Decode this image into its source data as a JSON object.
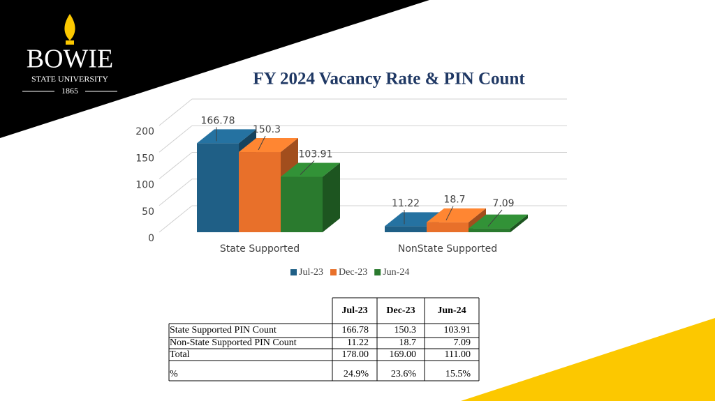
{
  "logo": {
    "name": "BOWIE",
    "subtitle": "STATE UNIVERSITY",
    "year": "1865"
  },
  "chart_data": {
    "type": "bar3d",
    "title": "FY 2024 Vacancy Rate & PIN Count",
    "categories": [
      "State Supported",
      "NonState Supported"
    ],
    "series": [
      {
        "name": "Jul-23",
        "color": "#1f5f86",
        "values": [
          166.78,
          11.22
        ]
      },
      {
        "name": "Dec-23",
        "color": "#e8702a",
        "values": [
          150.3,
          18.7
        ]
      },
      {
        "name": "Jun-24",
        "color": "#2a7a2e",
        "values": [
          103.91,
          7.09
        ]
      }
    ],
    "ylim": [
      0,
      200
    ],
    "yticks": [
      0,
      50,
      100,
      150,
      200
    ],
    "grid": true,
    "legend": "bottom"
  },
  "table": {
    "columns": [
      "Jul-23",
      "Dec-23",
      "Jun-24"
    ],
    "rows": [
      [
        "State Supported PIN Count",
        "166.78",
        "150.3",
        "103.91"
      ],
      [
        "Non-State Supported PIN Count",
        "11.22",
        "18.7",
        "7.09"
      ],
      [
        "Total",
        "178.00",
        "169.00",
        "111.00"
      ],
      [
        "%",
        "24.9%",
        "23.6%",
        "15.5%"
      ]
    ]
  }
}
